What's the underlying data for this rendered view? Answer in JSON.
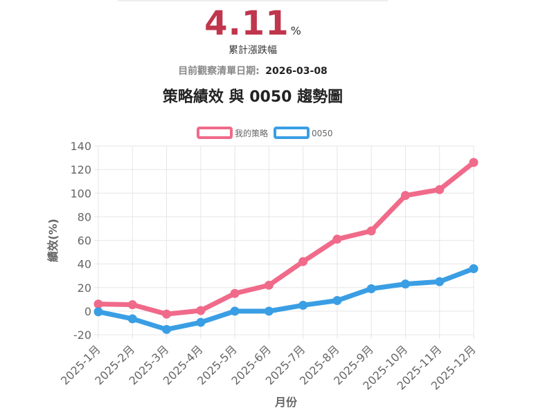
{
  "summary": {
    "value": "4.11",
    "unit": "%",
    "label": "累計漲跌幅",
    "date_label": "目前觀察清單日期:",
    "date_value": "2026-03-08",
    "value_color": "#c0364d"
  },
  "chart_data": {
    "type": "line",
    "title": "策略績效 與 0050 趨勢圖",
    "xlabel": "月份",
    "ylabel": "績效(%)",
    "ylim": [
      -20,
      140
    ],
    "yticks": [
      -20,
      0,
      20,
      40,
      60,
      80,
      100,
      120,
      140
    ],
    "categories": [
      "2025-1月",
      "2025-2月",
      "2025-3月",
      "2025-4月",
      "2025-5月",
      "2025-6月",
      "2025-7月",
      "2025-8月",
      "2025-9月",
      "2025-10月",
      "2025-11月",
      "2025-12月"
    ],
    "grid": true,
    "legend_position": "top",
    "series": [
      {
        "name": "我的策略",
        "color": "#f06a8a",
        "values": [
          6,
          5.5,
          -2.5,
          0.5,
          15,
          22,
          42,
          61,
          68,
          98,
          103,
          126
        ]
      },
      {
        "name": "0050",
        "color": "#3a9ee4",
        "values": [
          -0.5,
          -6.5,
          -15.5,
          -9.5,
          0,
          0,
          5,
          9,
          19,
          23,
          25,
          36
        ]
      }
    ]
  }
}
